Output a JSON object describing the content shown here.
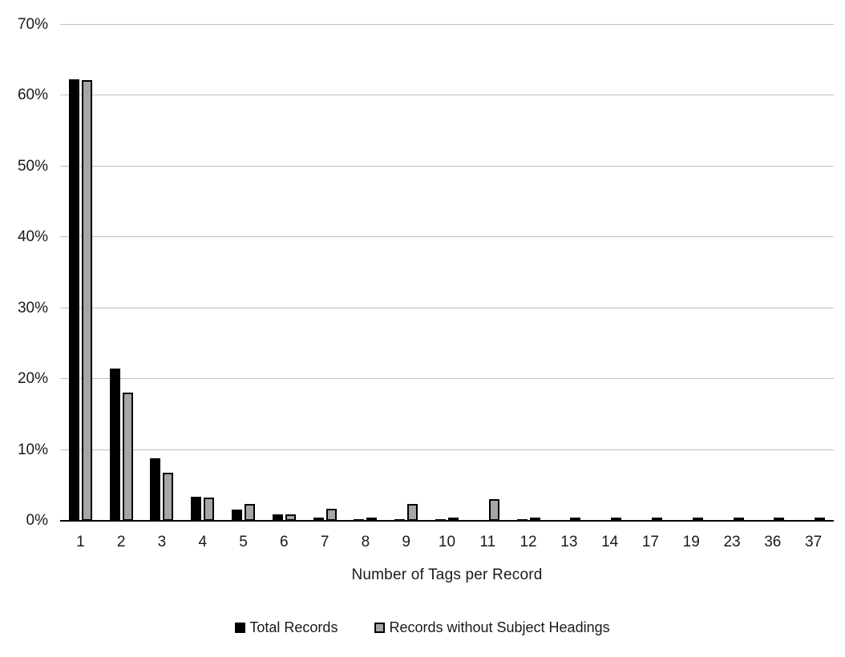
{
  "chart_data": {
    "type": "bar",
    "title": "",
    "xlabel": "Number of Tags per Record",
    "ylabel": "",
    "ylim": [
      0,
      70
    ],
    "ytick_step": 10,
    "ytick_labels": [
      "0%",
      "10%",
      "20%",
      "30%",
      "40%",
      "50%",
      "60%",
      "70%"
    ],
    "grid": true,
    "legend_position": "bottom",
    "categories": [
      "1",
      "2",
      "3",
      "4",
      "5",
      "6",
      "7",
      "8",
      "9",
      "10",
      "11",
      "12",
      "13",
      "14",
      "17",
      "19",
      "23",
      "36",
      "37"
    ],
    "series": [
      {
        "name": "Total Records",
        "color": "#000000",
        "border_color": "#000000",
        "values": [
          62.3,
          21.5,
          8.8,
          3.4,
          1.6,
          0.9,
          0.4,
          0.2,
          0.2,
          0.2,
          0.1,
          0.2,
          0.15,
          0.15,
          0.15,
          0.15,
          0.1,
          0.1,
          0.15
        ]
      },
      {
        "name": "Records without Subject Headings",
        "color": "#a6a6a6",
        "border_color": "#000000",
        "values": [
          62.0,
          17.9,
          6.6,
          3.0,
          2.1,
          0.7,
          1.5,
          0.2,
          2.2,
          0.1,
          2.8,
          0.15,
          0.1,
          0.1,
          0.05,
          0.05,
          0.05,
          0.05,
          0.05
        ]
      }
    ]
  },
  "colors": {
    "background": "#ffffff",
    "gridline": "#c0c0c0",
    "axis": "#000000",
    "text": "#1a1a1a"
  }
}
